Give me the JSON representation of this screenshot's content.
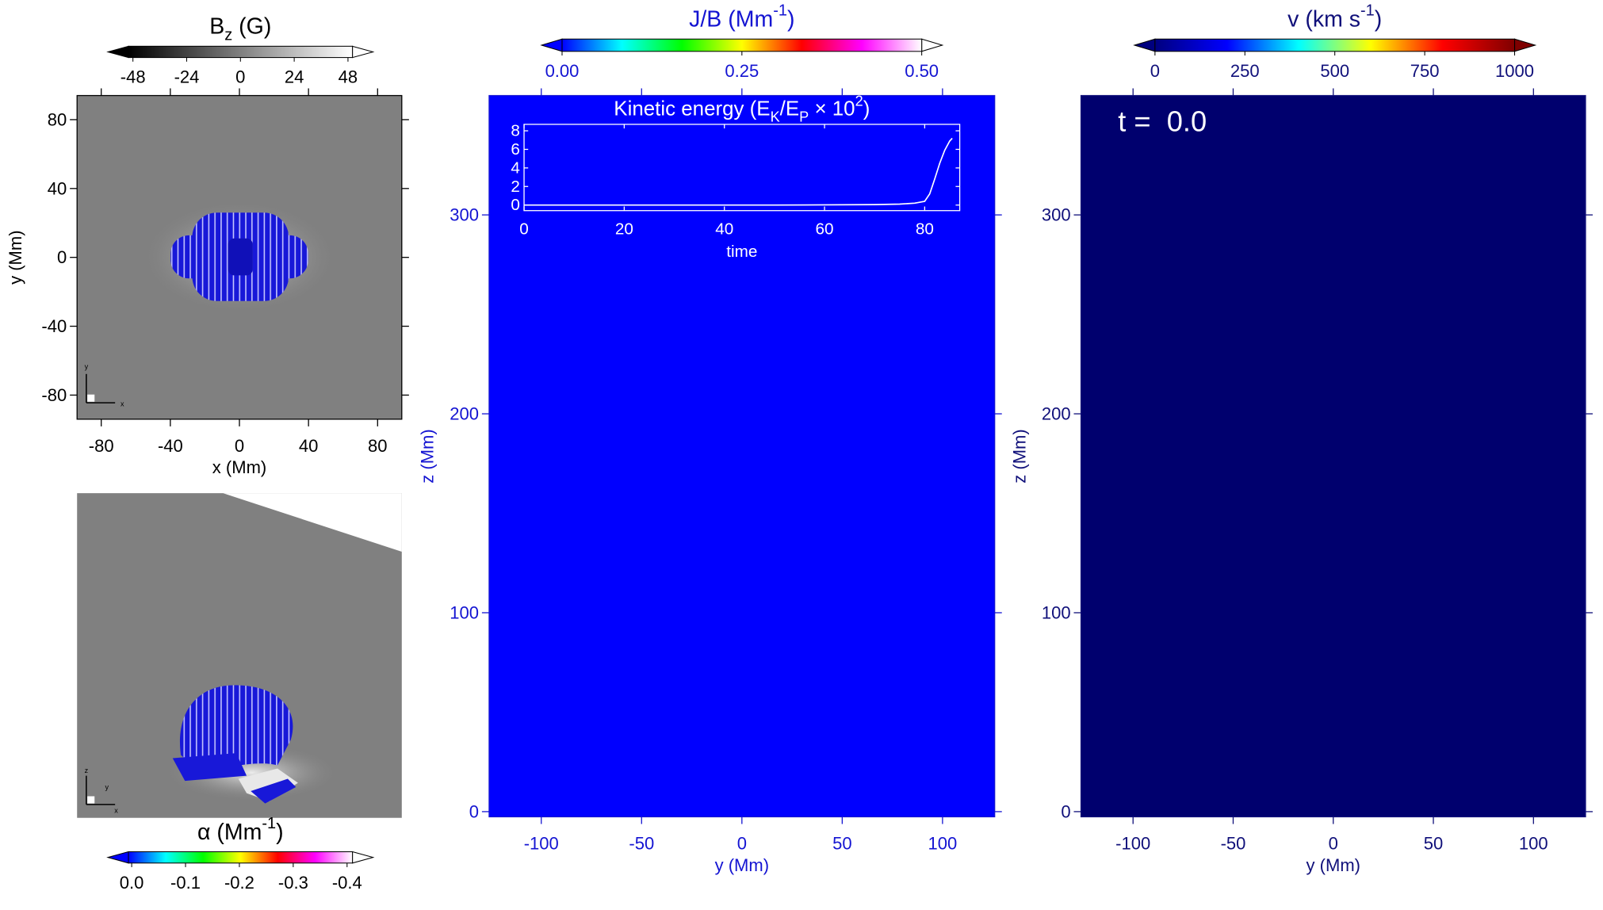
{
  "chart_data": [
    {
      "type": "map",
      "xlabel": "x (Mm)",
      "ylabel": "y (Mm)",
      "xlim": [
        -94,
        94
      ],
      "ylim": [
        -94,
        94
      ],
      "xticks": [
        -80,
        -40,
        0,
        40,
        80
      ],
      "yticks": [
        -80,
        -40,
        0,
        40,
        80
      ],
      "background": "#808080",
      "axis_color": "#000000",
      "triad": [
        "y",
        "x"
      ],
      "colorbar": {
        "label": [
          {
            "text": "B"
          },
          {
            "text": "z",
            "script": "sub"
          },
          {
            "text": " (G)"
          }
        ],
        "clim": [
          -50,
          50
        ],
        "ticks": [
          -48,
          -24,
          0,
          24,
          48
        ],
        "colormap": [
          "#000000",
          "#ffffff"
        ]
      }
    },
    {
      "type": "render",
      "background": "#808080",
      "axis_color": "#000000",
      "triad": [
        "z",
        "y",
        "x"
      ],
      "colorbar": {
        "label": [
          {
            "text": "α (Mm"
          },
          {
            "text": "-1",
            "script": "super"
          },
          {
            "text": ")"
          }
        ],
        "clim": [
          0.006,
          -0.41
        ],
        "ticks": [
          {
            "value": 0,
            "label": "0.0"
          },
          -0.1,
          -0.2,
          -0.3,
          -0.4
        ],
        "colormap": [
          "#0000ff",
          "#00ffff",
          "#00ff00",
          "#ffff00",
          "#ff0000",
          "#ff00ff",
          "#ffffff"
        ]
      }
    },
    {
      "type": "map",
      "xlabel": "y (Mm)",
      "ylabel": "z (Mm)",
      "xlim": [
        -126,
        126
      ],
      "ylim": [
        -2.6,
        360
      ],
      "xticks": [
        -100,
        -50,
        0,
        50,
        100
      ],
      "yticks": [
        0,
        100,
        200,
        300
      ],
      "background": "#0000ff",
      "axis_color": "#1414d2",
      "colorbar": {
        "label": [
          {
            "text": "J/B (Mm"
          },
          {
            "text": "-1",
            "script": "super"
          },
          {
            "text": ")"
          }
        ],
        "clim": [
          0,
          0.5
        ],
        "ticks": [
          {
            "value": 0,
            "label": "0.00"
          },
          0.25,
          {
            "value": 0.5,
            "label": "0.50"
          }
        ],
        "colormap": [
          "#0000ff",
          "#00ffff",
          "#00ff00",
          "#ffff00",
          "#ff0000",
          "#ff00ff",
          "#ffffff"
        ]
      },
      "inset": {
        "type": "line",
        "title": [
          {
            "text": "Kinetic energy (E"
          },
          {
            "text": "K",
            "script": "sub"
          },
          {
            "text": "/E"
          },
          {
            "text": "P",
            "script": "sub"
          },
          {
            "text": " × 10"
          },
          {
            "text": "2",
            "script": "super"
          },
          {
            "text": ")"
          }
        ],
        "xlabel": "time",
        "xlim": [
          0,
          87
        ],
        "ylim": [
          -0.6,
          8.7
        ],
        "xticks": [
          0,
          20,
          40,
          60,
          80
        ],
        "yticks": [
          0,
          2,
          4,
          6,
          8
        ],
        "color": "#ffffff",
        "x": [
          0,
          10,
          20,
          30,
          40,
          50,
          60,
          70,
          75,
          78,
          80,
          81,
          82,
          83,
          84,
          85,
          85.5
        ],
        "values": [
          0,
          0,
          0,
          0,
          0,
          0,
          0.02,
          0.05,
          0.1,
          0.2,
          0.4,
          1.2,
          2.8,
          4.5,
          5.9,
          6.9,
          7.2
        ]
      }
    },
    {
      "type": "map",
      "xlabel": "y (Mm)",
      "ylabel": "z (Mm)",
      "xlim": [
        -126,
        126
      ],
      "ylim": [
        -2.6,
        360
      ],
      "xticks": [
        -100,
        -50,
        0,
        50,
        100
      ],
      "yticks": [
        0,
        100,
        200,
        300
      ],
      "background": "#00006e",
      "axis_color": "#10107a",
      "annotation": "t =  0.0",
      "colorbar": {
        "label": [
          {
            "text": "v (km s"
          },
          {
            "text": "-1",
            "script": "super"
          },
          {
            "text": ")"
          }
        ],
        "clim": [
          0,
          1000
        ],
        "ticks": [
          0,
          250,
          500,
          750,
          1000
        ],
        "colormap": [
          "#00007f",
          "#0000ff",
          "#00ffff",
          "#ffff00",
          "#ff0000",
          "#7f0000"
        ]
      }
    }
  ]
}
